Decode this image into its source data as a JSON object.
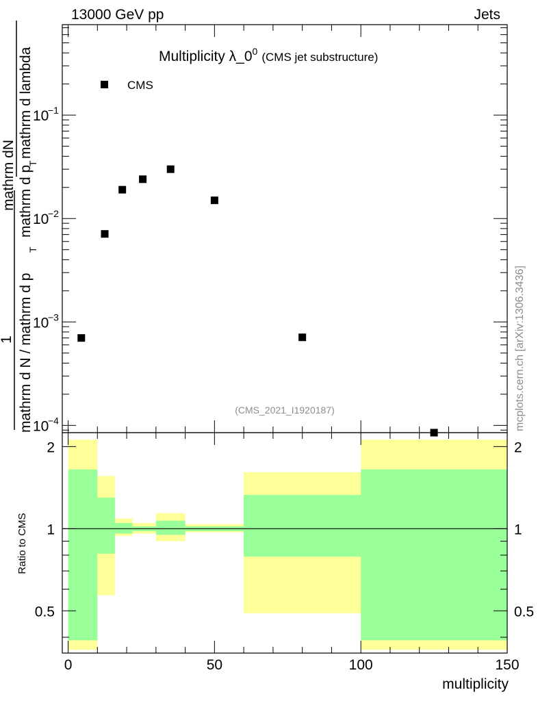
{
  "header": {
    "left": "13000 GeV pp",
    "right": "Jets"
  },
  "side_label": "mcplots.cern.ch [arXiv:1306.3436]",
  "chart_data": [
    {
      "type": "scatter",
      "title": "Multiplicity λ_0",
      "title_superscript": "0",
      "subtitle": "(CMS jet substructure)",
      "watermark": "(CMS_2021_I1920187)",
      "ylabel_numerator": "mathrm dN",
      "ylabel_denominator": "mathrm d N / mathrm d p",
      "ylabel_one": "1",
      "ylabel_left_line1": "mathrm d N / mathrm d p",
      "ylabel_mid": "mathrm d p",
      "ylabel_mid2": "mathrm d lambda",
      "ylabel_sub": "T",
      "yscale": "log",
      "ylim": [
        8.5e-05,
        0.75
      ],
      "xlim": [
        -2,
        150
      ],
      "ytick_labels": [
        "10",
        "10",
        "10",
        "10"
      ],
      "ytick_exponents": [
        "−1",
        "−2",
        "−3",
        "−4"
      ],
      "legend": {
        "label": "CMS",
        "position": "top-left"
      },
      "series": [
        {
          "name": "CMS",
          "marker": "square",
          "color": "#000000",
          "x": [
            4.5,
            12.5,
            18.5,
            25.5,
            35,
            50,
            80,
            125
          ],
          "y": [
            0.0007,
            0.0071,
            0.019,
            0.024,
            0.03,
            0.015,
            0.00071,
            8e-05
          ]
        }
      ]
    },
    {
      "type": "area",
      "ylabel": "Ratio to CMS",
      "xlabel": "multiplicity",
      "xlim": [
        -2,
        150
      ],
      "ylim": [
        0.35,
        2.25
      ],
      "xtick_labels": [
        "0",
        "50",
        "100",
        "150"
      ],
      "ytick_labels": [
        "2",
        "1",
        "0.5"
      ],
      "reference_line": 1,
      "bands": [
        {
          "name": "outer",
          "color": "#ffff99",
          "bins": [
            [
              0,
              10,
              0.36,
              2.12
            ],
            [
              10,
              16,
              0.57,
              1.56
            ],
            [
              16,
              22,
              0.94,
              1.09
            ],
            [
              22,
              30,
              0.96,
              1.05
            ],
            [
              30,
              40,
              0.9,
              1.14
            ],
            [
              40,
              60,
              0.97,
              1.04
            ],
            [
              60,
              100,
              0.49,
              1.61
            ],
            [
              100,
              150,
              0.36,
              2.12
            ]
          ]
        },
        {
          "name": "inner",
          "color": "#99ff99",
          "bins": [
            [
              0,
              10,
              0.39,
              1.65
            ],
            [
              10,
              16,
              0.81,
              1.3
            ],
            [
              16,
              22,
              0.96,
              1.05
            ],
            [
              22,
              30,
              0.98,
              1.02
            ],
            [
              30,
              40,
              0.95,
              1.07
            ],
            [
              40,
              60,
              0.98,
              1.02
            ],
            [
              60,
              100,
              0.79,
              1.33
            ],
            [
              100,
              150,
              0.39,
              1.65
            ]
          ]
        }
      ]
    }
  ]
}
